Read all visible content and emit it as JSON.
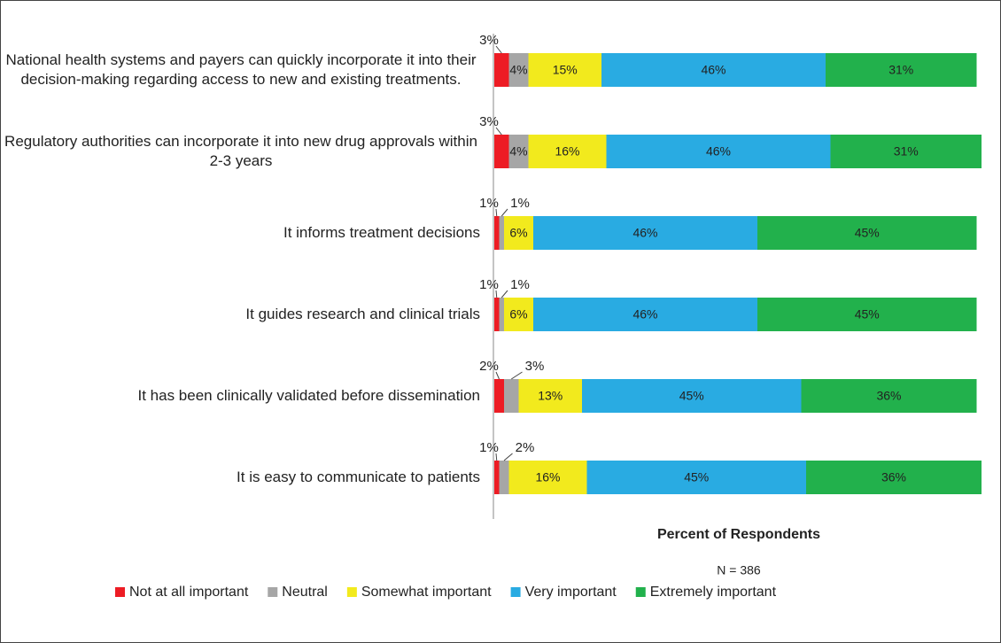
{
  "chart_data": {
    "type": "stacked_bar_horizontal",
    "x_label": "Percent of Respondents",
    "annotation": "N = 386",
    "xlim": [
      0,
      100
    ],
    "categories": [
      "National health systems and payers can quickly incorporate it into their decision-making regarding access to new and existing treatments.",
      "Regulatory authorities can incorporate it into new drug approvals within 2-3 years",
      "It informs treatment decisions",
      "It guides research and clinical trials",
      "It has been clinically validated before dissemination",
      "It is easy to communicate to patients"
    ],
    "series": [
      {
        "name": "Not at all important",
        "color": "#ed1c24",
        "values": [
          3,
          3,
          1,
          1,
          2,
          1
        ],
        "value_labels": [
          "3%",
          "3%",
          "1%",
          "1%",
          "2%",
          "1%"
        ]
      },
      {
        "name": "Neutral",
        "color": "#a6a6a6",
        "values": [
          4,
          4,
          1,
          1,
          3,
          2
        ],
        "value_labels": [
          "4%",
          "4%",
          "1%",
          "1%",
          "3%",
          "2%"
        ]
      },
      {
        "name": "Somewhat important",
        "color": "#f2ea1d",
        "values": [
          15,
          16,
          6,
          6,
          13,
          16
        ],
        "value_labels": [
          "15%",
          "16%",
          "6%",
          "6%",
          "13%",
          "16%"
        ]
      },
      {
        "name": "Very important",
        "color": "#29abe2",
        "values": [
          46,
          46,
          46,
          46,
          45,
          45
        ],
        "value_labels": [
          "46%",
          "46%",
          "46%",
          "46%",
          "45%",
          "45%"
        ]
      },
      {
        "name": "Extremely important",
        "color": "#22b14c",
        "values": [
          31,
          31,
          45,
          45,
          36,
          36
        ],
        "value_labels": [
          "31%",
          "31%",
          "45%",
          "45%",
          "36%",
          "36%"
        ]
      }
    ],
    "legend": "bottom"
  }
}
